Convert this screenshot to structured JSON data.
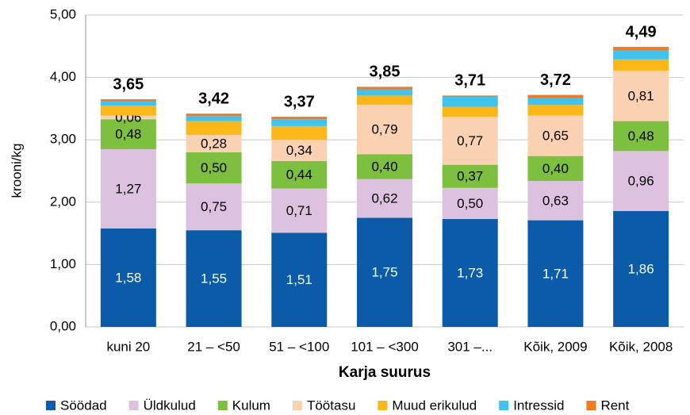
{
  "chart_data": {
    "type": "stacked_bar",
    "y_label": "krooni/kg",
    "x_label": "Karja suurus",
    "categories": [
      "kuni 20",
      "21 – <50",
      "51 – <100",
      "101 – <300",
      "301 –...",
      "Kõik, 2009",
      "Kõik, 2008"
    ],
    "series": [
      {
        "name": "Söödad",
        "color": "#0b5ba8",
        "values": [
          1.58,
          1.55,
          1.51,
          1.75,
          1.73,
          1.71,
          1.86
        ],
        "value_labels": [
          "1,58",
          "1,55",
          "1,51",
          "1,75",
          "1,73",
          "1,71",
          "1,86"
        ]
      },
      {
        "name": "Üldkulud",
        "color": "#dcc2de",
        "values": [
          1.27,
          0.75,
          0.71,
          0.62,
          0.5,
          0.63,
          0.96
        ],
        "value_labels": [
          "1,27",
          "0,75",
          "0,71",
          "0,62",
          "0,50",
          "0,63",
          "0,96"
        ]
      },
      {
        "name": "Kulum",
        "color": "#7dbf3f",
        "values": [
          0.48,
          0.5,
          0.44,
          0.4,
          0.37,
          0.4,
          0.48
        ],
        "value_labels": [
          "0,48",
          "0,50",
          "0,44",
          "0,40",
          "0,37",
          "0,40",
          "0,48"
        ]
      },
      {
        "name": "Töötasu",
        "color": "#fad2b2",
        "values": [
          0.06,
          0.28,
          0.34,
          0.79,
          0.77,
          0.65,
          0.81
        ],
        "value_labels": [
          "0,06",
          "0,28",
          "0,34",
          "0,79",
          "0,77",
          "0,65",
          "0,81"
        ]
      },
      {
        "name": "Muud erikulud",
        "color": "#fbb617",
        "values": [
          0.16,
          0.22,
          0.22,
          0.15,
          0.16,
          0.17,
          0.18
        ]
      },
      {
        "name": "Intressid",
        "color": "#40c3ef",
        "values": [
          0.07,
          0.08,
          0.11,
          0.1,
          0.16,
          0.11,
          0.14
        ]
      },
      {
        "name": "Rent",
        "color": "#f07b22",
        "values": [
          0.03,
          0.04,
          0.04,
          0.04,
          0.02,
          0.05,
          0.06
        ]
      }
    ],
    "total_labels": [
      "3,65",
      "3,42",
      "3,37",
      "3,85",
      "3,71",
      "3,72",
      "4,49"
    ],
    "ylim": [
      0,
      5
    ],
    "yticks": [
      {
        "value": 0,
        "label": "0,00"
      },
      {
        "value": 1,
        "label": "1,00"
      },
      {
        "value": 2,
        "label": "2,00"
      },
      {
        "value": 3,
        "label": "3,00"
      },
      {
        "value": 4,
        "label": "4,00"
      },
      {
        "value": 5,
        "label": "5,00"
      }
    ],
    "grid": true
  }
}
